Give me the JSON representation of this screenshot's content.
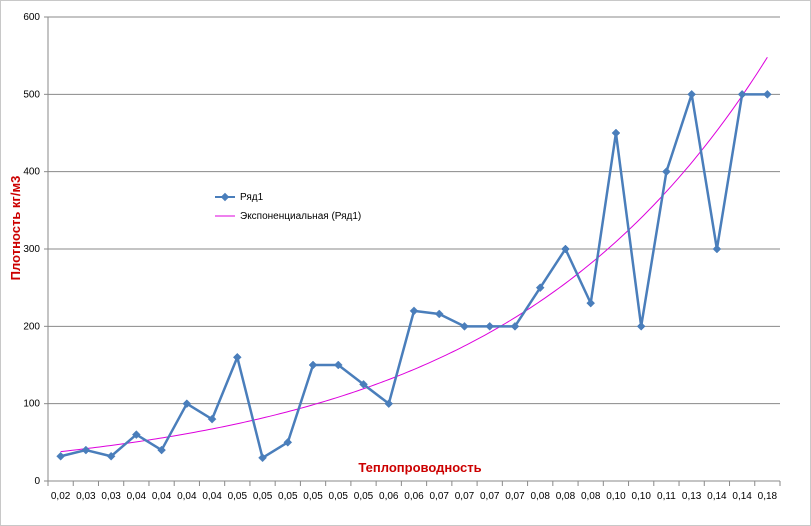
{
  "chart_data": {
    "type": "line",
    "xlabel": "Теплопроводность",
    "ylabel": "Плотность кг/м3",
    "categories": [
      "0,02",
      "0,03",
      "0,03",
      "0,04",
      "0,04",
      "0,04",
      "0,04",
      "0,05",
      "0,05",
      "0,05",
      "0,05",
      "0,05",
      "0,05",
      "0,06",
      "0,06",
      "0,07",
      "0,07",
      "0,07",
      "0,07",
      "0,08",
      "0,08",
      "0,08",
      "0,10",
      "0,10",
      "0,11",
      "0,13",
      "0,14",
      "0,14",
      "0,18"
    ],
    "y_ticks": [
      "0",
      "100",
      "200",
      "300",
      "400",
      "500",
      "600"
    ],
    "ylim": [
      0,
      600
    ],
    "grid": "horizontal",
    "legend_position": "middle-left",
    "series": [
      {
        "name": "Ряд1",
        "color": "#4a7ebb",
        "marker": "diamond",
        "values": [
          32,
          40,
          32,
          60,
          40,
          100,
          80,
          160,
          30,
          50,
          150,
          150,
          125,
          100,
          220,
          216,
          200,
          200,
          200,
          250,
          300,
          230,
          450,
          200,
          400,
          500,
          300,
          500,
          500
        ]
      }
    ],
    "trendline": {
      "name": "Экспоненциальная (Ряд1)",
      "type": "exponential",
      "color": "#dd00dd",
      "start": 38,
      "end": 548
    }
  }
}
